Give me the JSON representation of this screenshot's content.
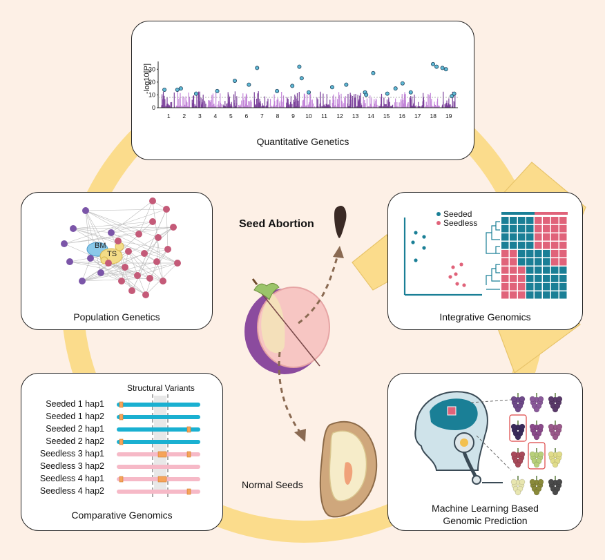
{
  "panels": {
    "quantitative": {
      "title": "Quantitative Genetics",
      "ylabel": "-log10[P]",
      "yticks": [
        "30",
        "20",
        "10",
        "0"
      ],
      "chromosomes": [
        "1",
        "2",
        "3",
        "4",
        "5",
        "6",
        "7",
        "8",
        "9",
        "10",
        "11",
        "12",
        "13",
        "14",
        "15",
        "16",
        "17",
        "18",
        "19"
      ]
    },
    "population": {
      "title": "Population Genetics",
      "node_labels": {
        "bm": "BM",
        "ts": "TS"
      }
    },
    "integrative": {
      "title": "Integrative Genomics",
      "legend": [
        {
          "label": "Seeded",
          "color": "#1a7f96"
        },
        {
          "label": "Seedless",
          "color": "#e0637a"
        }
      ]
    },
    "comparative": {
      "title": "Comparative Genomics",
      "sv_header": "Structural Variants",
      "haplotypes": [
        {
          "label": "Seeded 1 hap1",
          "color": "#1ab0d1"
        },
        {
          "label": "Seeded 1 hap2",
          "color": "#1ab0d1"
        },
        {
          "label": "Seeded 2 hap1",
          "color": "#1ab0d1"
        },
        {
          "label": "Seeded 2 hap2",
          "color": "#1ab0d1"
        },
        {
          "label": "Seedless 3 hap1",
          "color": "#f6b9c7"
        },
        {
          "label": "Seedless 3 hap2",
          "color": "#f6b9c7"
        },
        {
          "label": "Seedless 4 hap1",
          "color": "#f6b9c7"
        },
        {
          "label": "Seedless 4 hap2",
          "color": "#f6b9c7"
        }
      ]
    },
    "ml": {
      "title_line1": "Machine Learning Based",
      "title_line2": "Genomic Prediction"
    }
  },
  "center": {
    "seed_abortion": "Seed Abortion",
    "normal_seeds": "Normal Seeds"
  },
  "colors": {
    "background": "#fdf0e6",
    "ring": "#fbdc8c",
    "seeded": "#1a7f96",
    "seedless": "#e0637a",
    "manhattan_a": "#7a3f9a",
    "manhattan_b": "#c284d8"
  }
}
